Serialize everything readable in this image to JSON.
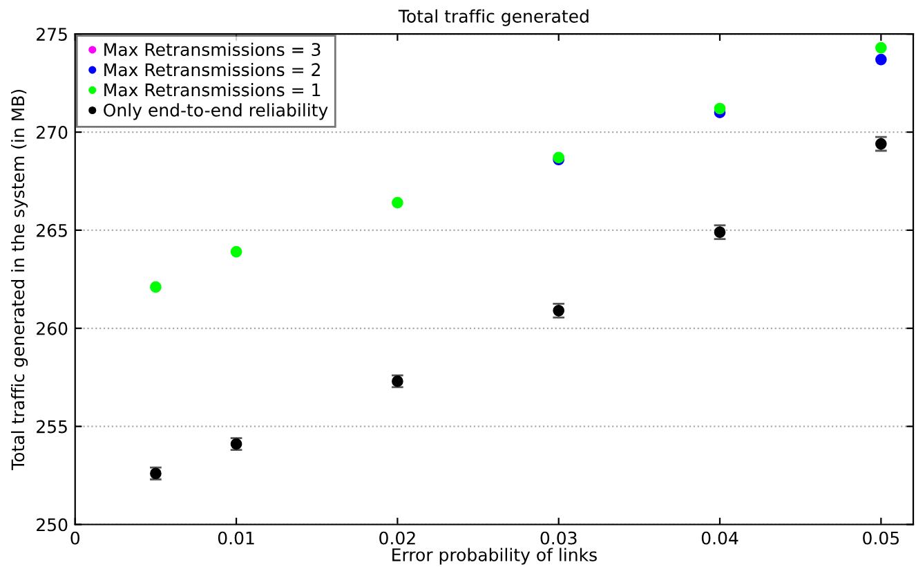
{
  "chart_data": {
    "type": "scatter",
    "title": "Total traffic generated",
    "xlabel": "Error probability of links",
    "ylabel": "Total traffic generated in the system (in MB)",
    "x": [
      0.005,
      0.01,
      0.02,
      0.03,
      0.04,
      0.05
    ],
    "series": [
      {
        "name": "Max Retransmissions = 3",
        "color": "#ff00ff",
        "values": [
          null,
          null,
          null,
          null,
          null,
          null
        ]
      },
      {
        "name": "Max Retransmissions = 2",
        "color": "#0000ff",
        "values": [
          null,
          null,
          null,
          268.6,
          271.0,
          273.7
        ]
      },
      {
        "name": "Max Retransmissions = 1",
        "color": "#00ff00",
        "values": [
          262.1,
          263.9,
          266.4,
          268.7,
          271.2,
          274.3
        ]
      },
      {
        "name": "Only end-to-end reliability",
        "color": "#000000",
        "values": [
          252.6,
          254.1,
          257.3,
          260.9,
          264.9,
          269.4
        ],
        "errors": [
          0.3,
          0.3,
          0.3,
          0.35,
          0.35,
          0.35
        ]
      }
    ],
    "xlim": [
      0,
      0.052
    ],
    "xticks": [
      {
        "value": 0,
        "label": "0"
      },
      0.01,
      0.02,
      0.03,
      0.04,
      0.05
    ],
    "ylim": [
      250,
      275
    ],
    "yticks": [
      250,
      255,
      260,
      265,
      270,
      275
    ],
    "grid": "y",
    "legend": "top left",
    "marker": "circle"
  }
}
